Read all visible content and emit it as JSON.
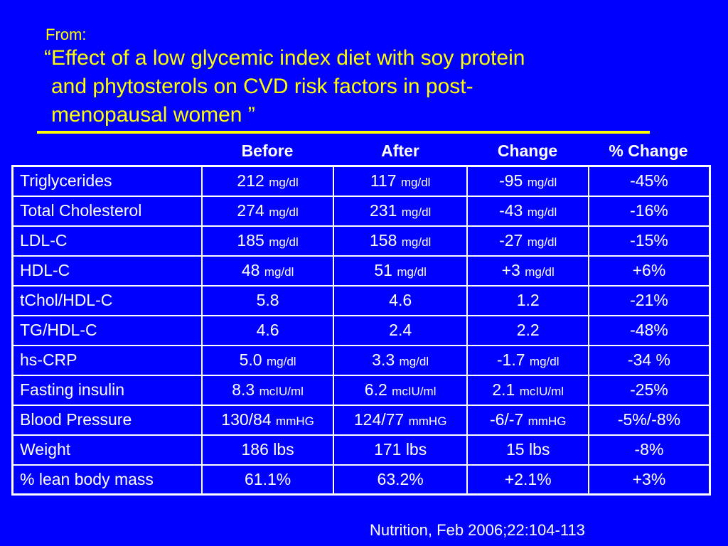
{
  "header": {
    "from_label": "From:",
    "title_lines": [
      "“Effect of a low glycemic index diet with soy protein",
      "and phytosterols on CVD risk factors in post-",
      "menopausal women ”"
    ]
  },
  "table": {
    "columns": [
      "Before",
      "After",
      "Change",
      "% Change"
    ],
    "rows": [
      {
        "label": "Triglycerides",
        "cells": [
          {
            "v": "212",
            "u": "mg/dl"
          },
          {
            "v": "117",
            "u": "mg/dl"
          },
          {
            "v": "-95",
            "u": "mg/dl"
          },
          {
            "v": "-45%",
            "u": ""
          }
        ]
      },
      {
        "label": "Total Cholesterol",
        "cells": [
          {
            "v": "274",
            "u": "mg/dl"
          },
          {
            "v": "231",
            "u": "mg/dl"
          },
          {
            "v": "-43",
            "u": "mg/dl"
          },
          {
            "v": "-16%",
            "u": ""
          }
        ]
      },
      {
        "label": "LDL-C",
        "cells": [
          {
            "v": "185",
            "u": "mg/dl"
          },
          {
            "v": "158",
            "u": "mg/dl"
          },
          {
            "v": "-27",
            "u": "mg/dl"
          },
          {
            "v": "-15%",
            "u": ""
          }
        ]
      },
      {
        "label": "HDL-C",
        "cells": [
          {
            "v": "48",
            "u": "mg/dl"
          },
          {
            "v": "51",
            "u": "mg/dl"
          },
          {
            "v": "+3",
            "u": "mg/dl"
          },
          {
            "v": "+6%",
            "u": ""
          }
        ]
      },
      {
        "label": "tChol/HDL-C",
        "cells": [
          {
            "v": "5.8",
            "u": ""
          },
          {
            "v": "4.6",
            "u": ""
          },
          {
            "v": "1.2",
            "u": ""
          },
          {
            "v": "-21%",
            "u": ""
          }
        ]
      },
      {
        "label": "TG/HDL-C",
        "cells": [
          {
            "v": "4.6",
            "u": ""
          },
          {
            "v": "2.4",
            "u": ""
          },
          {
            "v": "2.2",
            "u": ""
          },
          {
            "v": "-48%",
            "u": ""
          }
        ]
      },
      {
        "label": "hs-CRP",
        "cells": [
          {
            "v": "5.0",
            "u": "mg/dl"
          },
          {
            "v": "3.3",
            "u": "mg/dl"
          },
          {
            "v": "-1.7",
            "u": "mg/dl"
          },
          {
            "v": "-34 %",
            "u": ""
          }
        ]
      },
      {
        "label": "Fasting insulin",
        "cells": [
          {
            "v": "8.3",
            "u": "mcIU/ml"
          },
          {
            "v": "6.2",
            "u": "mcIU/ml"
          },
          {
            "v": "2.1",
            "u": "mcIU/ml"
          },
          {
            "v": "-25%",
            "u": ""
          }
        ]
      },
      {
        "label": "Blood Pressure",
        "cells": [
          {
            "v": "130/84",
            "u": "mmHG"
          },
          {
            "v": "124/77",
            "u": "mmHG"
          },
          {
            "v": "-6/-7",
            "u": "mmHG"
          },
          {
            "v": "-5%/-8%",
            "u": ""
          }
        ]
      },
      {
        "label": "Weight",
        "cells": [
          {
            "v": "186 lbs",
            "u": ""
          },
          {
            "v": "171 lbs",
            "u": ""
          },
          {
            "v": "15 lbs",
            "u": ""
          },
          {
            "v": "-8%",
            "u": ""
          }
        ]
      },
      {
        "label": "% lean body mass",
        "cells": [
          {
            "v": "61.1%",
            "u": ""
          },
          {
            "v": "63.2%",
            "u": ""
          },
          {
            "v": "+2.1%",
            "u": ""
          },
          {
            "v": "+3%",
            "u": ""
          }
        ]
      }
    ]
  },
  "citation": "Nutrition, Feb 2006;22:104-113",
  "colors": {
    "background": "#0000ff",
    "title": "#ffff00",
    "text": "#ffffff"
  }
}
